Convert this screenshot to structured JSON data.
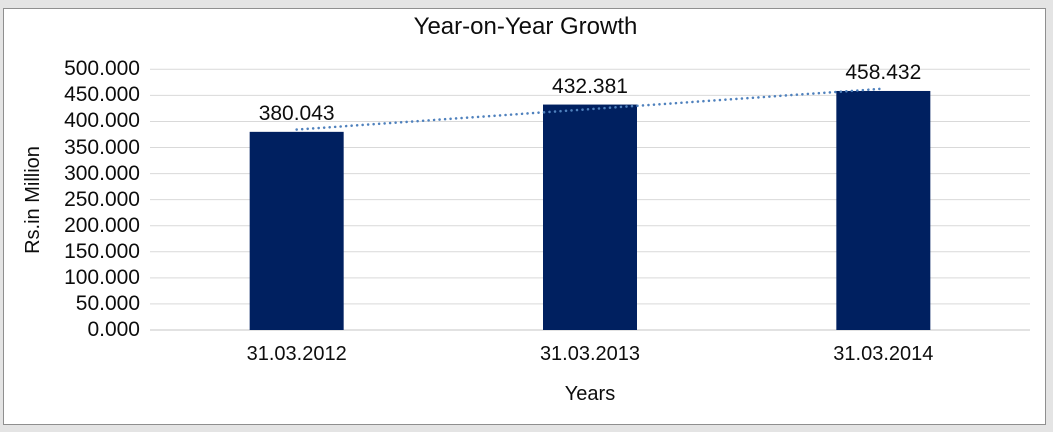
{
  "chart_data": {
    "type": "bar",
    "title": "Year-on-Year Growth",
    "xlabel": "Years",
    "ylabel": "Rs.in Million",
    "categories": [
      "31.03.2012",
      "31.03.2013",
      "31.03.2014"
    ],
    "values": [
      380.043,
      432.381,
      458.432
    ],
    "data_labels": [
      "380.043",
      "432.381",
      "458.432"
    ],
    "ylim": [
      0,
      500
    ],
    "ytick_step": 50,
    "ytick_decimals": 3,
    "grid": true,
    "legend": false,
    "trendline": {
      "type": "linear",
      "style": "dotted",
      "color": "#4F81BD"
    },
    "colors": {
      "bar": "#002060",
      "gridline": "#D9D9D9",
      "axis_line": "#C6C6C6",
      "text": "#0D0D0D",
      "panel_border": "#8F8F8F",
      "outer_background": "#E4E4E4"
    }
  }
}
